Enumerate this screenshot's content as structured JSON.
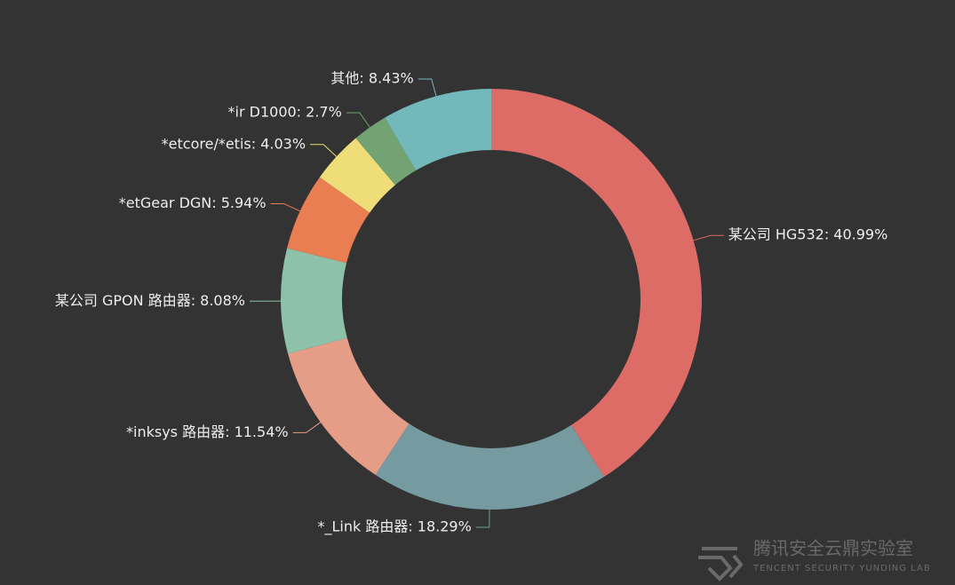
{
  "chart_data": {
    "type": "donut",
    "values": [
      40.99,
      18.29,
      11.54,
      8.08,
      5.94,
      4.03,
      2.7,
      8.43
    ],
    "value_labels": [
      "某公司 HG532: 40.99%",
      "*_Link 路由器: 18.29%",
      "*inksys 路由器: 11.54%",
      "某公司 GPON 路由器: 8.08%",
      "*etGear DGN: 5.94%",
      "*etcore/*etis: 4.03%",
      "*ir D1000: 2.7%",
      "其他: 8.43%"
    ],
    "colors": [
      "#dd6b66",
      "#759aa0",
      "#e69d87",
      "#8dc1a9",
      "#ea7e53",
      "#eedd78",
      "#73a373",
      "#73b9bc"
    ]
  },
  "watermark": {
    "title": "腾讯安全云鼎实验室",
    "subtitle": "TENCENT SECURITY YUNDING LAB"
  }
}
